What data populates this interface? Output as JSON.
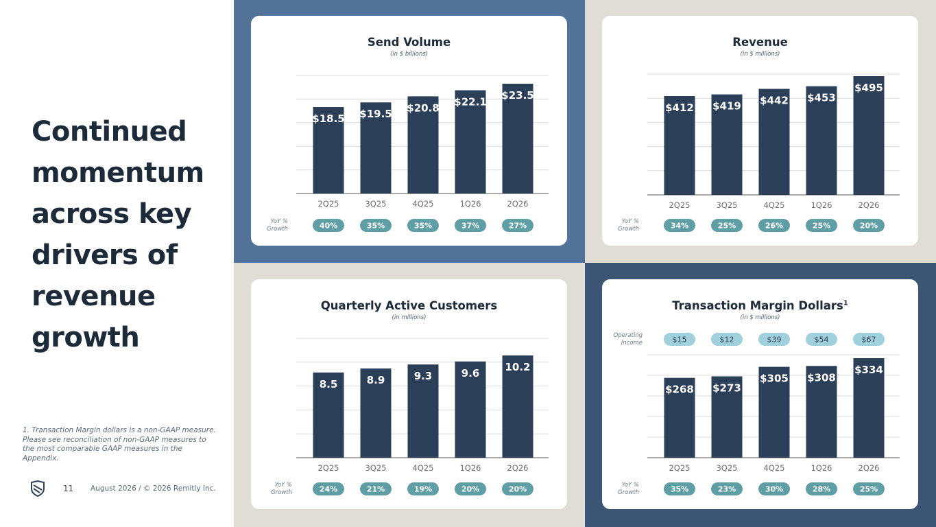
{
  "slide": {
    "headline_lines": [
      "Continued",
      "momentum",
      "across key",
      "drivers of",
      "revenue",
      "growth"
    ],
    "footnote": "1. Transaction Margin dollars is a non-GAAP measure. Please see reconciliation of non-GAAP measures to the most comparable GAAP measures in the Appendix.",
    "page_number": "11",
    "footer": "August 2026 / © 2026 Remitly Inc.",
    "logo_icon": "remitly-shield-logo"
  },
  "colors": {
    "bar": "#2c3f58",
    "pill_growth": "#5f9ea5",
    "pill_income": "#9fd0db",
    "axis": "#7a7a7a",
    "grid": "#dcdcdc",
    "quad_blue": "#527397",
    "quad_navy": "#3d5575",
    "quad_beige": "#e0ddd7"
  },
  "growth_row_label": "YoY % Growth",
  "chart_data": [
    {
      "type": "bar",
      "title": "Send Volume",
      "subtitle": "(in $ billions)",
      "categories": [
        "2Q25",
        "3Q25",
        "4Q25",
        "1Q26",
        "2Q26"
      ],
      "values": [
        18.5,
        19.5,
        20.8,
        22.1,
        23.5
      ],
      "value_labels": [
        "$18.5",
        "$19.5",
        "$20.8",
        "$22.1",
        "$23.5"
      ],
      "growth_labels": [
        "40%",
        "35%",
        "35%",
        "37%",
        "27%"
      ],
      "grid": true
    },
    {
      "type": "bar",
      "title": "Revenue",
      "subtitle": "(in $ millions)",
      "categories": [
        "2Q25",
        "3Q25",
        "4Q25",
        "1Q26",
        "2Q26"
      ],
      "values": [
        412,
        419,
        442,
        453,
        495
      ],
      "value_labels": [
        "$412",
        "$419",
        "$442",
        "$453",
        "$495"
      ],
      "growth_labels": [
        "34%",
        "25%",
        "26%",
        "25%",
        "20%"
      ],
      "grid": true
    },
    {
      "type": "bar",
      "title": "Quarterly Active Customers",
      "subtitle": "(in millions)",
      "categories": [
        "2Q25",
        "3Q25",
        "4Q25",
        "1Q26",
        "2Q26"
      ],
      "values": [
        8.5,
        8.9,
        9.3,
        9.6,
        10.2
      ],
      "value_labels": [
        "8.5",
        "8.9",
        "9.3",
        "9.6",
        "10.2"
      ],
      "growth_labels": [
        "24%",
        "21%",
        "19%",
        "20%",
        "20%"
      ],
      "grid": true
    },
    {
      "type": "bar",
      "title": "Transaction Margin Dollars",
      "title_superscript": "1",
      "subtitle": "(in $ millions)",
      "categories": [
        "2Q25",
        "3Q25",
        "4Q25",
        "1Q26",
        "2Q26"
      ],
      "values": [
        268,
        273,
        305,
        308,
        334
      ],
      "value_labels": [
        "$268",
        "$273",
        "$305",
        "$308",
        "$334"
      ],
      "growth_labels": [
        "35%",
        "23%",
        "30%",
        "28%",
        "25%"
      ],
      "extra_row_label": "Operating Income",
      "extra_row_labels": [
        "$15",
        "$12",
        "$39",
        "$54",
        "$67"
      ],
      "grid": true
    }
  ]
}
